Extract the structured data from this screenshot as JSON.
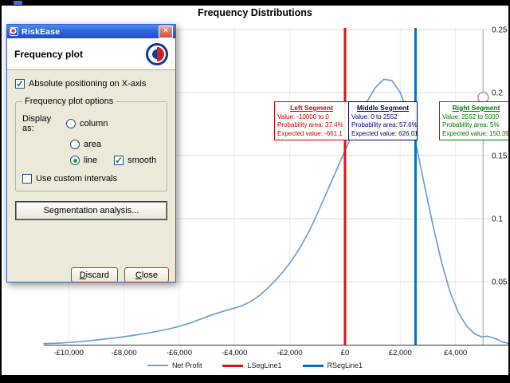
{
  "window": {
    "title": "Frequency Distributions"
  },
  "chart_data": {
    "type": "line",
    "title": "Frequency Distributions",
    "grid": true,
    "legend_position": "bottom",
    "series": [
      {
        "name": "Net Profit",
        "color": "#6f9fd8"
      }
    ],
    "x_axis": {
      "tick_values": [
        -10000,
        -8000,
        -6000,
        -4000,
        -2000,
        0,
        2000,
        4000
      ],
      "tick_labels": [
        "-£10,000",
        "-£8,000",
        "-£6,000",
        "-£4,000",
        "-£2,000",
        "£0",
        "£2,000",
        "£4,000"
      ],
      "range": [
        -10900,
        6000
      ]
    },
    "y_axis": {
      "tick_values": [
        0.05,
        0.1,
        0.15,
        0.2,
        0.25
      ],
      "range": [
        0,
        0.25
      ]
    },
    "curve": [
      [
        -10900,
        0.0008
      ],
      [
        -10400,
        0.0012
      ],
      [
        -10000,
        0.0018
      ],
      [
        -9600,
        0.0024
      ],
      [
        -9200,
        0.0032
      ],
      [
        -8800,
        0.0042
      ],
      [
        -8400,
        0.0052
      ],
      [
        -8000,
        0.0063
      ],
      [
        -7600,
        0.0076
      ],
      [
        -7200,
        0.009
      ],
      [
        -6800,
        0.0106
      ],
      [
        -6400,
        0.0124
      ],
      [
        -6000,
        0.0145
      ],
      [
        -5600,
        0.0172
      ],
      [
        -5200,
        0.0205
      ],
      [
        -4900,
        0.023
      ],
      [
        -4600,
        0.0252
      ],
      [
        -4300,
        0.0272
      ],
      [
        -4000,
        0.029
      ],
      [
        -3700,
        0.0312
      ],
      [
        -3400,
        0.0345
      ],
      [
        -3100,
        0.039
      ],
      [
        -2800,
        0.0448
      ],
      [
        -2500,
        0.0515
      ],
      [
        -2200,
        0.059
      ],
      [
        -1900,
        0.0678
      ],
      [
        -1600,
        0.078
      ],
      [
        -1300,
        0.09
      ],
      [
        -1000,
        0.104
      ],
      [
        -700,
        0.119
      ],
      [
        -400,
        0.134
      ],
      [
        -100,
        0.149
      ],
      [
        200,
        0.164
      ],
      [
        500,
        0.179
      ],
      [
        800,
        0.193
      ],
      [
        1100,
        0.204
      ],
      [
        1400,
        0.2105
      ],
      [
        1700,
        0.2095
      ],
      [
        2000,
        0.2
      ],
      [
        2300,
        0.182
      ],
      [
        2600,
        0.156
      ],
      [
        2900,
        0.124
      ],
      [
        3200,
        0.093
      ],
      [
        3500,
        0.065
      ],
      [
        3800,
        0.042
      ],
      [
        4100,
        0.0255
      ],
      [
        4400,
        0.0148
      ],
      [
        4700,
        0.0085
      ],
      [
        4950,
        0.0062
      ],
      [
        5150,
        0.0068
      ],
      [
        5400,
        0.0052
      ],
      [
        5700,
        0.0022
      ],
      [
        5950,
        0.0008
      ]
    ],
    "segment_lines": [
      {
        "name": "LSegLine1",
        "value": 0,
        "color": "#e11212",
        "width": 3
      },
      {
        "name": "RSegLine1",
        "value": 2552,
        "color": "#0072c6",
        "width": 3
      }
    ],
    "boundary_line": {
      "value": 5000,
      "color": "#bdbdbd",
      "handle_density": 0.196
    }
  },
  "segments": {
    "left": {
      "title": "Left Segment",
      "value_text": "Value: -10000 to 0",
      "probability_text": "Probability area: 37.4%",
      "expected_text": "Expected value: -661.1",
      "color": "#d40000"
    },
    "middle": {
      "title": "Middle Segment",
      "value_text": "Value: 0 to 2552",
      "probability_text": "Probability area: 57.6%",
      "expected_text": "Expected value: 626.01",
      "color": "#000080"
    },
    "right": {
      "title": "Right Segment",
      "value_text": "Value: 2552 to 5000",
      "probability_text": "Probability area: 5%",
      "expected_text": "Expected value: 150.35",
      "color": "#007a00"
    }
  },
  "legend": [
    {
      "label": "Net Profit",
      "color": "#6f9fd8",
      "thick": false
    },
    {
      "label": "LSegLine1",
      "color": "#e11212",
      "thick": true
    },
    {
      "label": "RSegLine1",
      "color": "#0072c6",
      "thick": true
    }
  ],
  "dialog": {
    "title": "RiskEase",
    "close_glyph": "×",
    "heading": "Frequency plot",
    "abs_positioning_label": "Absolute positioning on X-axis",
    "abs_positioning_checked": true,
    "group_label": "Frequency plot options",
    "display_as_label": "Display as:",
    "options": [
      {
        "label": "column",
        "selected": false
      },
      {
        "label": "area",
        "selected": false
      },
      {
        "label": "line",
        "selected": true
      }
    ],
    "smooth_label": "smooth",
    "smooth_checked": true,
    "custom_intervals_label": "Use custom intervals",
    "custom_intervals_checked": false,
    "segmentation_button": "Segmentation analysis...",
    "discard_button": "Discard",
    "close_button": "Close"
  }
}
